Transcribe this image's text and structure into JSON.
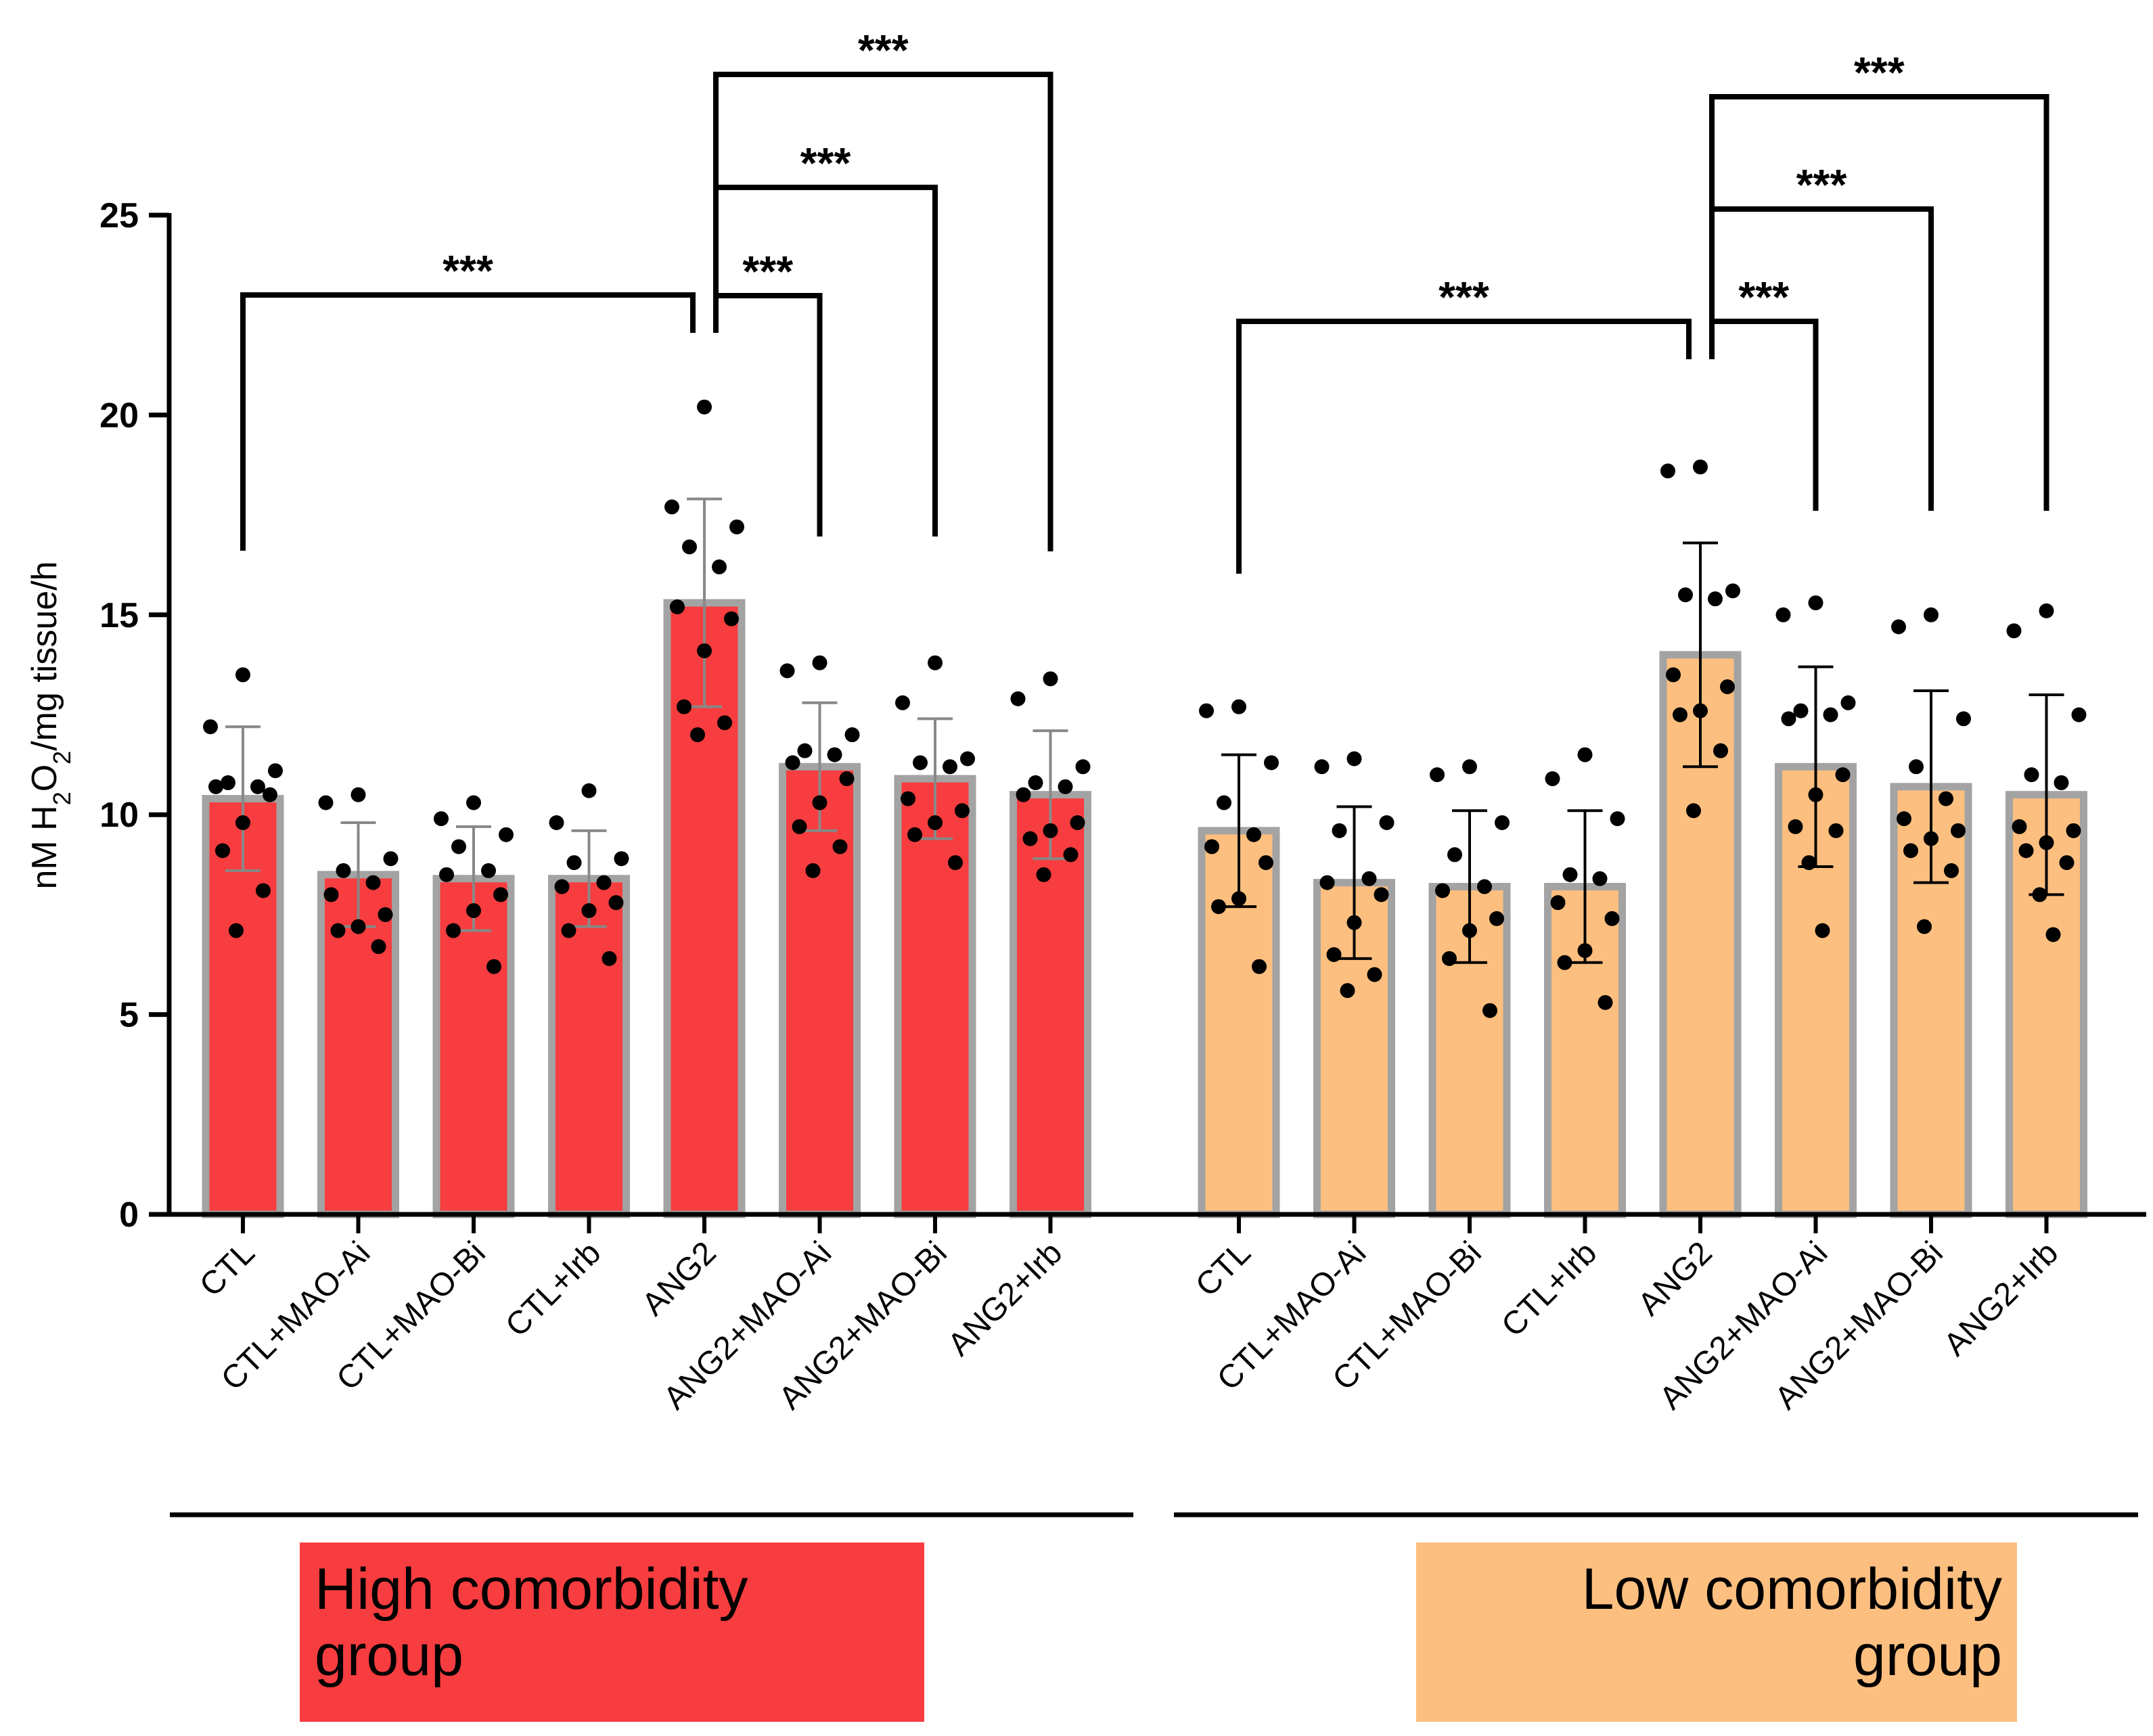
{
  "chart_data": {
    "type": "bar",
    "ylabel": "nM H2O2/mg tissue/h",
    "ylabel_parts": {
      "pre": "nM H",
      "sub1": "2",
      "mid": "O",
      "sub2": "2",
      "post": "/mg tissue/h"
    },
    "ylim": [
      0,
      25
    ],
    "yticks": [
      "0",
      "5",
      "10",
      "15",
      "20",
      "25"
    ],
    "error_bars": "mean ± SD",
    "groups": [
      {
        "name": "High comorbidity group",
        "label_line1": "High comorbidity",
        "label_line2": "group",
        "color": "#f73d3f",
        "categories": [
          "CTL",
          "CTL+MAO-Ai",
          "CTL+MAO-Bi",
          "CTL+Irb",
          "ANG2",
          "ANG2+MAO-Ai",
          "ANG2+MAO-Bi",
          "ANG2+Irb"
        ],
        "values": [
          10.4,
          8.5,
          8.4,
          8.4,
          15.3,
          11.2,
          10.9,
          10.5
        ],
        "sd": [
          1.8,
          1.3,
          1.3,
          1.2,
          2.6,
          1.6,
          1.5,
          1.6
        ],
        "points": [
          [
            13.5,
            12.2,
            11.1,
            10.8,
            10.7,
            10.7,
            10.5,
            9.8,
            9.1,
            8.1,
            7.1
          ],
          [
            10.5,
            10.3,
            8.9,
            8.6,
            8.3,
            8.0,
            7.5,
            7.2,
            7.1,
            6.7
          ],
          [
            10.3,
            9.9,
            9.5,
            9.2,
            8.6,
            8.5,
            8.0,
            7.6,
            7.1,
            6.2
          ],
          [
            10.6,
            9.8,
            8.9,
            8.8,
            8.3,
            8.2,
            7.8,
            7.6,
            7.1,
            6.4
          ],
          [
            20.2,
            17.7,
            17.2,
            16.7,
            16.2,
            15.2,
            14.9,
            14.1,
            12.7,
            12.3,
            12.0
          ],
          [
            13.8,
            13.6,
            12.0,
            11.6,
            11.5,
            11.3,
            10.9,
            10.3,
            9.7,
            9.2,
            8.6
          ],
          [
            13.8,
            12.8,
            11.4,
            11.3,
            11.2,
            10.4,
            10.1,
            9.8,
            9.5,
            8.8
          ],
          [
            13.4,
            12.9,
            11.2,
            10.8,
            10.7,
            10.5,
            9.8,
            9.6,
            9.4,
            9.0,
            8.5
          ]
        ],
        "significance": [
          {
            "from": "CTL",
            "to": "ANG2",
            "label": "***"
          },
          {
            "from": "ANG2",
            "to": "ANG2+MAO-Ai",
            "label": "***"
          },
          {
            "from": "ANG2",
            "to": "ANG2+MAO-Bi",
            "label": "***"
          },
          {
            "from": "ANG2",
            "to": "ANG2+Irb",
            "label": "***"
          }
        ]
      },
      {
        "name": "Low comorbidity group",
        "label_line1": "Low comorbidity",
        "label_line2": "group",
        "color": "#fdbf7f",
        "categories": [
          "CTL",
          "CTL+MAO-Ai",
          "CTL+MAO-Bi",
          "CTL+Irb",
          "ANG2",
          "ANG2+MAO-Ai",
          "ANG2+MAO-Bi",
          "ANG2+Irb"
        ],
        "values": [
          9.6,
          8.3,
          8.2,
          8.2,
          14.0,
          11.2,
          10.7,
          10.5
        ],
        "sd": [
          1.9,
          1.9,
          1.9,
          1.9,
          2.8,
          2.5,
          2.4,
          2.5
        ],
        "points": [
          [
            12.7,
            12.6,
            11.3,
            10.3,
            9.5,
            9.2,
            8.8,
            7.9,
            7.7,
            6.2
          ],
          [
            11.4,
            11.2,
            9.8,
            9.6,
            8.4,
            8.3,
            8.0,
            7.3,
            6.5,
            6.0,
            5.6
          ],
          [
            11.2,
            11.0,
            9.8,
            9.0,
            8.2,
            8.1,
            7.4,
            7.1,
            6.4,
            5.1
          ],
          [
            11.5,
            10.9,
            9.9,
            8.5,
            8.4,
            7.8,
            7.4,
            6.6,
            6.3,
            5.3
          ],
          [
            18.7,
            18.6,
            15.6,
            15.5,
            15.4,
            13.5,
            13.2,
            12.6,
            12.5,
            11.6,
            10.1
          ],
          [
            15.3,
            15.0,
            12.8,
            12.6,
            12.5,
            12.4,
            11.0,
            10.5,
            9.7,
            9.6,
            8.8,
            7.1
          ],
          [
            15.0,
            14.7,
            12.4,
            11.2,
            10.4,
            9.9,
            9.6,
            9.4,
            9.1,
            8.6,
            7.2
          ],
          [
            15.1,
            14.6,
            12.5,
            11.0,
            10.8,
            9.7,
            9.6,
            9.3,
            9.1,
            8.8,
            8.0,
            7.0
          ]
        ],
        "significance": [
          {
            "from": "CTL",
            "to": "ANG2",
            "label": "***"
          },
          {
            "from": "ANG2",
            "to": "ANG2+MAO-Ai",
            "label": "***"
          },
          {
            "from": "ANG2",
            "to": "ANG2+MAO-Bi",
            "label": "***"
          },
          {
            "from": "ANG2",
            "to": "ANG2+Irb",
            "label": "***"
          }
        ]
      }
    ]
  }
}
